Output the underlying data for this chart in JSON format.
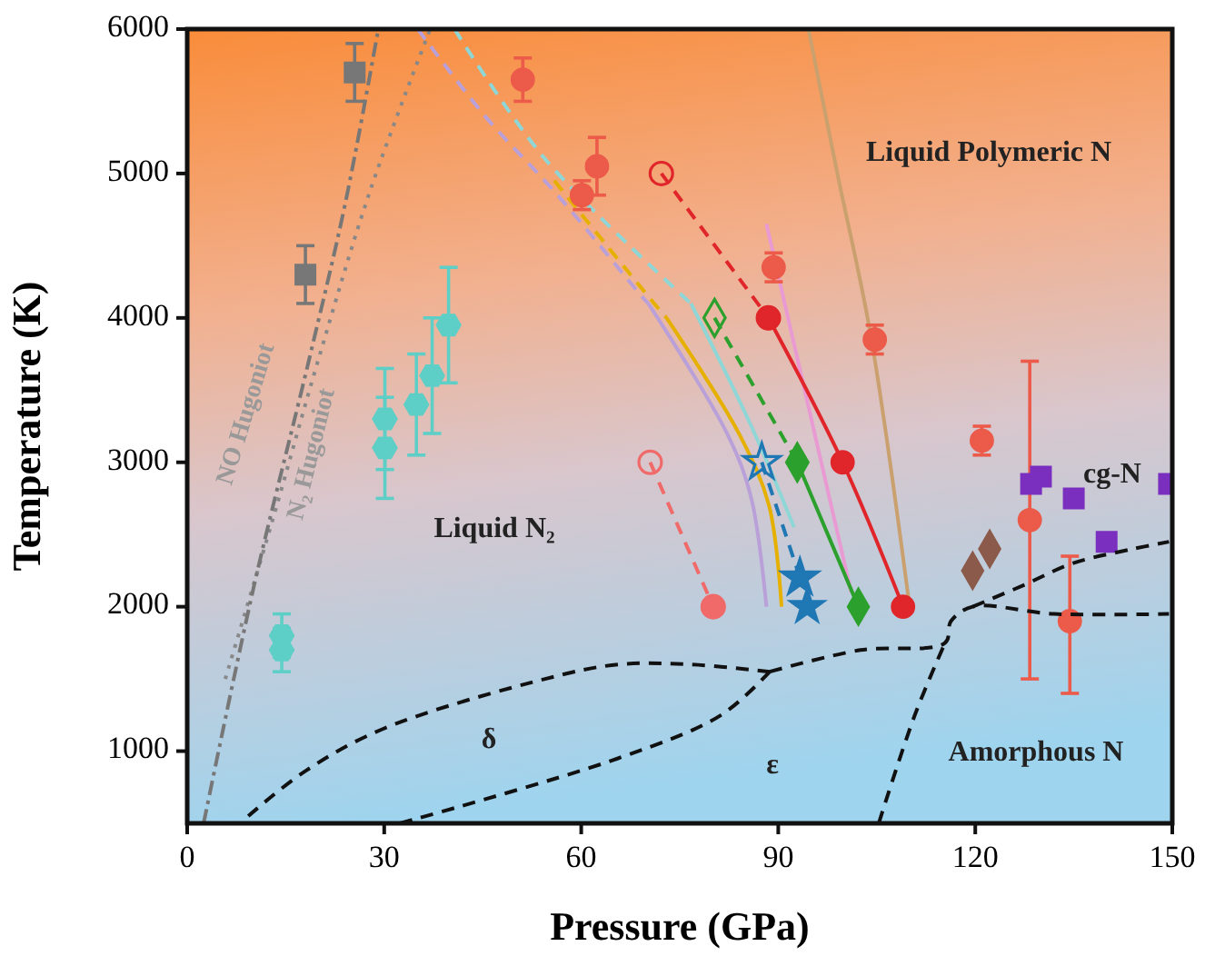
{
  "chart_data": {
    "type": "line",
    "xlabel": "Pressure (GPa)",
    "ylabel": "Temperature (K)",
    "xlim": [
      0,
      150
    ],
    "ylim": [
      500,
      6000
    ],
    "xticks": [
      0,
      30,
      60,
      90,
      120,
      150
    ],
    "yticks": [
      1000,
      2000,
      3000,
      4000,
      5000,
      6000
    ],
    "grid": false,
    "series": [
      {
        "color": "#888888",
        "line_style": "dotted",
        "marker": "none",
        "x": [
          5.8,
          13,
          19.9,
          28,
          37
        ],
        "values": [
          1500,
          2600,
          3700,
          4900,
          6000
        ]
      },
      {
        "color": "#777777",
        "line_style": "dashdot",
        "marker": "none",
        "x": [
          2.5,
          10.2,
          18.5,
          24.1,
          29.1
        ],
        "values": [
          500,
          2150,
          3700,
          4800,
          6000
        ]
      },
      {
        "type": "scatter",
        "color": "#777777",
        "marker": "square",
        "x": [
          25.5,
          18
        ],
        "values": [
          5700,
          4300
        ],
        "errors": [
          200,
          200
        ]
      },
      {
        "type": "scatter",
        "color": "#5ecfc7",
        "x": [
          14.4,
          14.4,
          30.1,
          30.1,
          34.9,
          37.3,
          39.8
        ],
        "values": [
          1800,
          1700,
          3300,
          3100,
          3400,
          3600,
          3950
        ],
        "errors": [
          150,
          150,
          350,
          350,
          350,
          400,
          400
        ]
      },
      {
        "color": "#c9a06e",
        "line_style": "solid",
        "marker": "none",
        "x": [
          94.6,
          99,
          104,
          110
        ],
        "values": [
          6000,
          5000,
          3900,
          2000
        ]
      },
      {
        "color": "#b9a0d8",
        "line_style": "dashed",
        "marker": "none",
        "x": [
          35.1,
          45.3,
          56.4,
          69.2,
          70.2
        ],
        "values": [
          6000,
          5400,
          4850,
          4150,
          4100
        ]
      },
      {
        "color": "#b9a0d8",
        "line_style": "solid",
        "marker": "none",
        "x": [
          70.2,
          82.2,
          85.9,
          88.2
        ],
        "values": [
          4100,
          3200,
          2750,
          2000
        ]
      },
      {
        "color": "#8fd6d6",
        "line_style": "dashed",
        "marker": "none",
        "x": [
          40.7,
          54.5,
          76.7
        ],
        "values": [
          6000,
          5100,
          4100
        ]
      },
      {
        "color": "#8fd6d6",
        "line_style": "solid",
        "marker": "none",
        "x": [
          76.7,
          85.9,
          92.4
        ],
        "values": [
          4100,
          3250,
          2550
        ]
      },
      {
        "color": "#e6b000",
        "line_style": "dashed",
        "marker": "none",
        "x": [
          55.9,
          71.1,
          73
        ],
        "values": [
          4950,
          4100,
          4000
        ]
      },
      {
        "color": "#e6b000",
        "line_style": "solid",
        "marker": "none",
        "x": [
          73,
          84,
          88.6,
          90.5
        ],
        "values": [
          4000,
          3200,
          2700,
          2000
        ]
      },
      {
        "color": "#e99ad3",
        "line_style": "solid",
        "marker": "none",
        "x": [
          88.2,
          101.1
        ],
        "values": [
          4650,
          2100
        ]
      },
      {
        "color": "#f06a6a",
        "line_style": "dashed",
        "marker": "circle",
        "x": [
          70.5,
          80.1
        ],
        "values": [
          3000,
          2000
        ]
      },
      {
        "type": "scatter",
        "color": "#f06a6a",
        "marker": "circle",
        "x": [
          80.1
        ],
        "values": [
          2000
        ]
      },
      {
        "color": "#1f77b4",
        "line_style": "dashed",
        "marker": "star",
        "x": [
          87.5,
          93.3
        ],
        "values": [
          3000,
          2200
        ]
      },
      {
        "type": "scatter",
        "color": "#1f77b4",
        "marker": "star",
        "x": [
          93.3,
          94.4
        ],
        "values": [
          2200,
          2000
        ]
      },
      {
        "color": "#2ca02c",
        "line_style": "dashed",
        "marker": "diamond",
        "x": [
          80.3,
          92.9
        ],
        "values": [
          4000,
          3000
        ]
      },
      {
        "color": "#2ca02c",
        "line_style": "solid",
        "marker": "diamond",
        "x": [
          92.9,
          102.2
        ],
        "values": [
          3000,
          2000
        ]
      },
      {
        "color": "#e0262a",
        "line_style": "dashed",
        "marker": "circle",
        "x": [
          72.2,
          88.5
        ],
        "values": [
          5000,
          4000
        ]
      },
      {
        "color": "#e0262a",
        "line_style": "solid",
        "marker": "circle",
        "x": [
          88.5,
          99.8,
          109
        ],
        "values": [
          4000,
          3000,
          2000
        ]
      },
      {
        "type": "scatter",
        "color": "#ec5a4a",
        "marker": "circle",
        "x": [
          51.1,
          62.4,
          60.1,
          89.3,
          104.7,
          121,
          128.3,
          134.4
        ],
        "values": [
          5650,
          5050,
          4850,
          4350,
          3850,
          3150,
          2600,
          1900
        ],
        "errors": [
          150,
          200,
          100,
          100,
          100,
          100,
          [
            1500,
            3700
          ],
          [
            1400,
            2350
          ]
        ]
      },
      {
        "type": "scatter",
        "color": "#7b2fbf",
        "marker": "square",
        "x": [
          128.5,
          130,
          135,
          140,
          149.5
        ],
        "values": [
          2850,
          2900,
          2750,
          2450,
          2850
        ]
      },
      {
        "type": "scatter",
        "color": "#8b5a4a",
        "marker": "diamond",
        "x": [
          122.2,
          119.6
        ],
        "values": [
          2400,
          2250
        ]
      },
      {
        "color": "#111111",
        "line_style": "dashed",
        "marker": "none",
        "x": [
          9.3,
          17.6,
          29.6,
          54.5,
          65.6,
          76.7,
          88.7
        ],
        "values": [
          550,
          850,
          1150,
          1500,
          1600,
          1600,
          1550
        ]
      },
      {
        "color": "#111111",
        "line_style": "dashed",
        "marker": "none",
        "x": [
          32.4,
          65.6,
          81.3,
          88.7
        ],
        "values": [
          500,
          950,
          1250,
          1550
        ]
      },
      {
        "color": "#111111",
        "line_style": "dashed",
        "marker": "none",
        "x": [
          88.7,
          102.5,
          115.4,
          116.3,
          119.6,
          132,
          149.5
        ],
        "values": [
          1550,
          1700,
          1750,
          1900,
          2000,
          1950,
          1950
        ]
      },
      {
        "color": "#111111",
        "line_style": "dashed",
        "marker": "none",
        "x": [
          105.3,
          110.8,
          115.4
        ],
        "values": [
          500,
          1250,
          1750
        ]
      },
      {
        "color": "#111111",
        "line_style": "dashed",
        "marker": "none",
        "x": [
          119.6,
          127.4,
          134.8,
          144,
          149.5
        ],
        "values": [
          2000,
          2150,
          2300,
          2400,
          2450
        ]
      }
    ],
    "annotations": [
      "Liquid Polymeric N",
      "Liquid N₂",
      "δ",
      "ε",
      "cg-N",
      "Amorphous N",
      "NO Hugoniot",
      "N₂ Hugoniot"
    ]
  }
}
